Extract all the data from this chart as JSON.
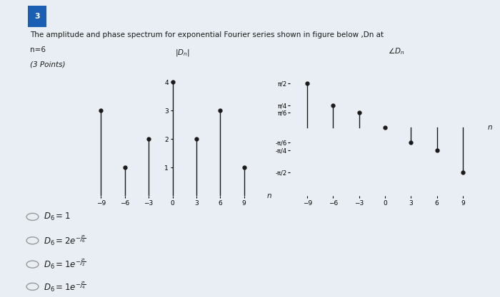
{
  "title_line1": "The amplitude and phase spectrum for exponential Fourier series shown in figure below ,Dn at",
  "title_line2": "n=6",
  "title_line3": "(3 Points)",
  "question_num": "3",
  "amp_n": [
    -9,
    -6,
    -3,
    0,
    3,
    6,
    9
  ],
  "amp_values": [
    3,
    1,
    2,
    4,
    2,
    3,
    1
  ],
  "amp_ylabel": "|Dₙ|",
  "amp_xlabel": "n",
  "amp_ylim": [
    0,
    4.8
  ],
  "amp_xlim": [
    -11,
    11
  ],
  "amp_yticks": [
    1,
    2,
    3,
    4
  ],
  "amp_xticks": [
    -9,
    -6,
    -3,
    0,
    3,
    6,
    9
  ],
  "phase_n": [
    -9,
    -6,
    -3,
    0,
    3,
    6,
    9
  ],
  "phase_values": [
    1.5707963,
    0.7853982,
    0.5235988,
    0,
    -0.5235988,
    -0.7853982,
    -1.5707963
  ],
  "phase_ylabel": "∠Dₙ",
  "phase_xlabel": "n",
  "phase_ylim": [
    -2.4,
    2.4
  ],
  "phase_xlim": [
    -11,
    11
  ],
  "phase_ytick_vals": [
    1.5707963,
    0.7853982,
    0.5235988,
    -0.5235988,
    -0.7853982,
    -1.5707963
  ],
  "phase_ytick_labels": [
    "π/2",
    "π/4",
    "π/6",
    "-π/6",
    "-π/4",
    "-π/2"
  ],
  "phase_xticks": [
    -9,
    -6,
    -3,
    0,
    3,
    6,
    9
  ],
  "bg_outer": "#c8d8e8",
  "bg_inner": "#e8eef4",
  "plot_bg": "#e8eef4",
  "stem_color": "#1a1a1a",
  "marker_color": "#1a1a1a",
  "badge_color": "#1a5fb4",
  "text_color": "#1a1a1a"
}
